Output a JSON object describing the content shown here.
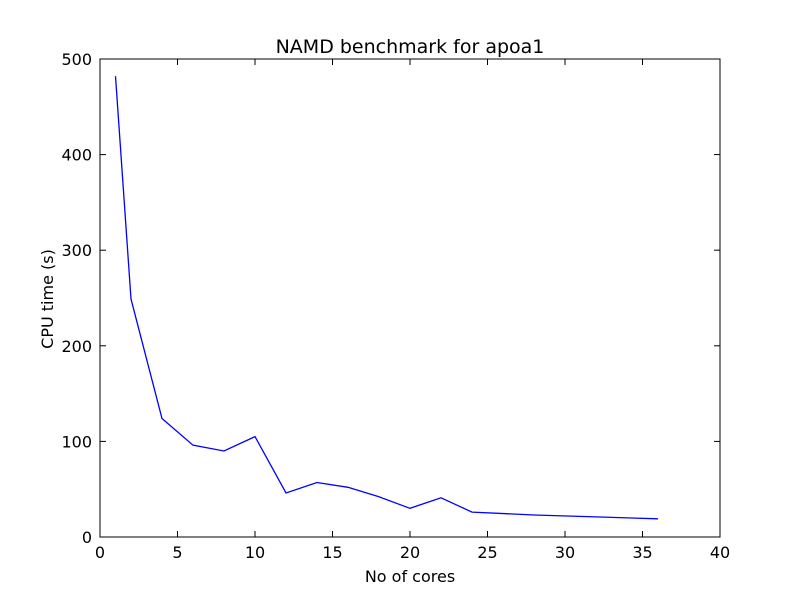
{
  "chart_data": {
    "type": "line",
    "title": "NAMD benchmark for apoa1",
    "xlabel": "No of cores",
    "ylabel": "CPU time (s)",
    "xlim": [
      0,
      40
    ],
    "ylim": [
      0,
      500
    ],
    "xticks": [
      0,
      5,
      10,
      15,
      20,
      25,
      30,
      35,
      40
    ],
    "yticks": [
      0,
      100,
      200,
      300,
      400,
      500
    ],
    "grid": false,
    "series": [
      {
        "color": "#0000ff",
        "x": [
          1,
          2,
          4,
          6,
          8,
          10,
          12,
          14,
          16,
          18,
          20,
          22,
          24,
          28,
          32,
          36
        ],
        "y": [
          482,
          249,
          124,
          96,
          90,
          105,
          46,
          57,
          52,
          42,
          30,
          41,
          26,
          23,
          21,
          19
        ]
      }
    ]
  }
}
